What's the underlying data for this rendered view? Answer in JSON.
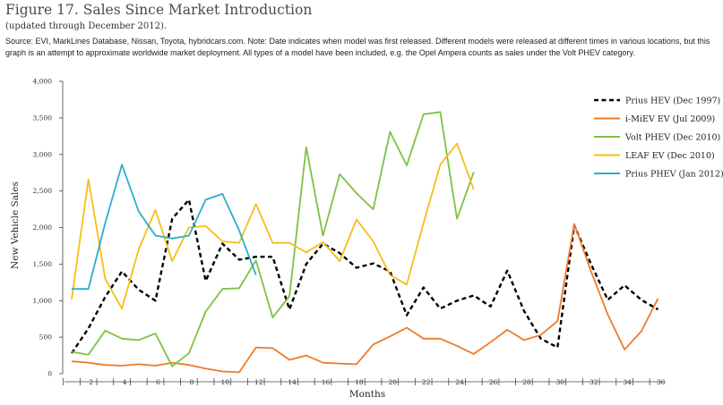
{
  "header": {
    "title": "Figure 17. Sales Since Market Introduction",
    "subtitle": "(updated through December 2012).",
    "source": "Source: EVI, MarkLines Database, Nissan, Toyota, hybridcars.com. Note: Date indicates when model was first released. Different models were released at different times in various locations, but this graph is an attempt to approximate worldwide market deployment. All types of a model have been included, e.g. the Opel Ampera counts as sales under the Volt PHEV category."
  },
  "chart_data": {
    "type": "line",
    "xlabel": "Months",
    "ylabel": "New Vehicle Sales",
    "xlim": [
      1,
      36
    ],
    "ylim": [
      0,
      4000
    ],
    "x_ticks": [
      2,
      4,
      6,
      8,
      10,
      12,
      14,
      16,
      18,
      20,
      22,
      24,
      26,
      28,
      30,
      32,
      34,
      36
    ],
    "y_ticks": [
      0,
      500,
      1000,
      1500,
      2000,
      2500,
      3000,
      3500,
      4000
    ],
    "y_tick_labels": [
      "0",
      "500",
      "1,000",
      "1,500",
      "2,000",
      "2,500",
      "3,000",
      "3,500",
      "4,000"
    ],
    "grid": false,
    "legend_position": "right",
    "series": [
      {
        "name": "Prius HEV (Dec 1997)",
        "color": "#000000",
        "dashed": true,
        "x": [
          1,
          2,
          3,
          4,
          5,
          6,
          7,
          8,
          9,
          10,
          11,
          12,
          13,
          14,
          15,
          16,
          17,
          18,
          19,
          20,
          21,
          22,
          23,
          24,
          25,
          26,
          27,
          28,
          29,
          30,
          31,
          32,
          33,
          34,
          35,
          36
        ],
        "values": [
          280,
          620,
          1050,
          1400,
          1150,
          1000,
          2120,
          2380,
          1270,
          1780,
          1560,
          1600,
          1600,
          880,
          1500,
          1780,
          1650,
          1450,
          1510,
          1400,
          800,
          1180,
          890,
          1000,
          1070,
          920,
          1410,
          860,
          480,
          360,
          2030,
          1500,
          1010,
          1210,
          1010,
          880
        ]
      },
      {
        "name": "i-MiEV EV (Jul 2009)",
        "color": "#f07a2a",
        "dashed": false,
        "x": [
          1,
          2,
          3,
          4,
          5,
          6,
          7,
          8,
          9,
          10,
          11,
          12,
          13,
          14,
          15,
          16,
          17,
          18,
          19,
          20,
          21,
          22,
          23,
          24,
          25,
          26,
          27,
          28,
          29,
          30,
          31,
          32,
          33,
          34,
          35,
          36
        ],
        "values": [
          170,
          150,
          120,
          110,
          130,
          110,
          150,
          120,
          70,
          30,
          20,
          360,
          350,
          190,
          250,
          150,
          140,
          130,
          400,
          510,
          630,
          480,
          480,
          380,
          270,
          430,
          600,
          460,
          530,
          720,
          2050,
          1400,
          810,
          330,
          580,
          1030
        ]
      },
      {
        "name": "Volt PHEV (Dec 2010)",
        "color": "#7cc242",
        "dashed": false,
        "x": [
          1,
          2,
          3,
          4,
          5,
          6,
          7,
          8,
          9,
          10,
          11,
          12,
          13,
          14,
          15,
          16,
          17,
          18,
          19,
          20,
          21,
          22,
          23,
          24,
          25
        ],
        "values": [
          300,
          260,
          590,
          480,
          460,
          550,
          100,
          280,
          850,
          1160,
          1170,
          1550,
          770,
          1060,
          3100,
          1890,
          2730,
          2470,
          2250,
          3310,
          2850,
          3550,
          3580,
          2120,
          2760
        ]
      },
      {
        "name": "LEAF EV (Dec 2010)",
        "color": "#f7bd16",
        "dashed": false,
        "x": [
          1,
          2,
          3,
          4,
          5,
          6,
          7,
          8,
          9,
          10,
          11,
          12,
          13,
          14,
          15,
          16,
          17,
          18,
          19,
          20,
          21,
          22,
          23,
          24,
          25
        ],
        "values": [
          1020,
          2660,
          1300,
          890,
          1700,
          2240,
          1540,
          2000,
          2020,
          1810,
          1790,
          2320,
          1790,
          1790,
          1660,
          1800,
          1540,
          2110,
          1810,
          1350,
          1220,
          2060,
          2860,
          3150,
          2520
        ]
      },
      {
        "name": "Prius PHEV (Jan 2012)",
        "color": "#2aaec9",
        "dashed": false,
        "x": [
          1,
          2,
          3,
          4,
          5,
          6,
          7,
          8,
          9,
          10,
          11,
          12
        ],
        "values": [
          1160,
          1160,
          2060,
          2860,
          2220,
          1890,
          1850,
          1890,
          2380,
          2460,
          1960,
          1350
        ]
      }
    ]
  }
}
